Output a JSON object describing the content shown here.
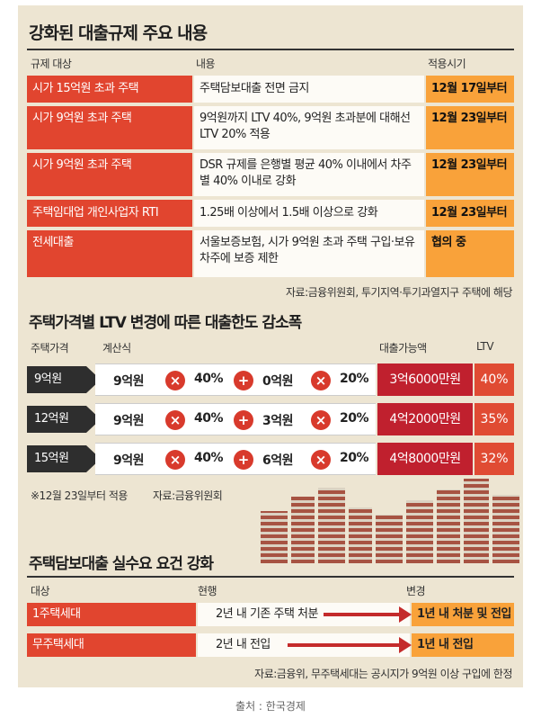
{
  "section1": {
    "title": "강화된 대출규제 주요 내용",
    "headers": {
      "target": "규제 대상",
      "content": "내용",
      "date": "적용시기"
    },
    "rows": [
      {
        "target": "시가 15억원 초과 주택",
        "content": "주택담보대출 전면 금지",
        "date": "12월 17일부터"
      },
      {
        "target": "시가 9억원 초과 주택",
        "content": "9억원까지 LTV 40%, 9억원 초과분에 대해선 LTV 20% 적용",
        "date": "12월 23일부터"
      },
      {
        "target": "시가 9억원 초과 주택",
        "content": "DSR 규제를 은행별 평균 40% 이내에서 차주별 40% 이내로 강화",
        "date": "12월 23일부터"
      },
      {
        "target": "주택임대업 개인사업자 RTI",
        "content": "1.25배 이상에서 1.5배 이상으로 강화",
        "date": "12월 23일부터"
      },
      {
        "target": "전세대출",
        "content": "서울보증보험, 시가 9억원 초과 주택 구입·보유 차주에 보증 제한",
        "date": "협의 중"
      }
    ],
    "note": "자료:금융위원회, 투기지역·투기과열지구 주택에 해당"
  },
  "section2": {
    "title": "주택가격별 LTV 변경에 따른 대출한도 감소폭",
    "headers": {
      "price": "주택가격",
      "formula": "계산식",
      "amount": "대출가능액",
      "ltv": "LTV"
    },
    "operators": {
      "times": "×",
      "plus": "+"
    },
    "rows": [
      {
        "price": "9억원",
        "a": "9억원",
        "ra": "40%",
        "b": "0억원",
        "rb": "20%",
        "amount": "3억6000만원",
        "ltv": "40%"
      },
      {
        "price": "12억원",
        "a": "9억원",
        "ra": "40%",
        "b": "3억원",
        "rb": "20%",
        "amount": "4억2000만원",
        "ltv": "35%"
      },
      {
        "price": "15억원",
        "a": "9억원",
        "ra": "40%",
        "b": "6억원",
        "rb": "20%",
        "amount": "4억8000만원",
        "ltv": "32%"
      }
    ],
    "note_date": "※12월 23일부터 적용",
    "note_source": "자료:금융위원회"
  },
  "section3": {
    "title": "주택담보대출 실수요 요건 강화",
    "headers": {
      "target": "대상",
      "current": "현행",
      "change": "변경"
    },
    "rows": [
      {
        "target": "1주택세대",
        "current": "2년 내 기존 주택 처분",
        "change": "1년 내 처분 및 전입"
      },
      {
        "target": "무주택세대",
        "current": "2년 내 전입",
        "change": "1년 내 전입"
      }
    ],
    "note": "자료:금융위, 무주택세대는 공시지가 9억원 이상 구입에 한정"
  },
  "source": "출처 : 한국경제",
  "colors": {
    "background": "#ede5d2",
    "red": "#e1452f",
    "orange": "#f9a23a",
    "dark": "#2e2e2e",
    "crimson": "#c0202e"
  }
}
